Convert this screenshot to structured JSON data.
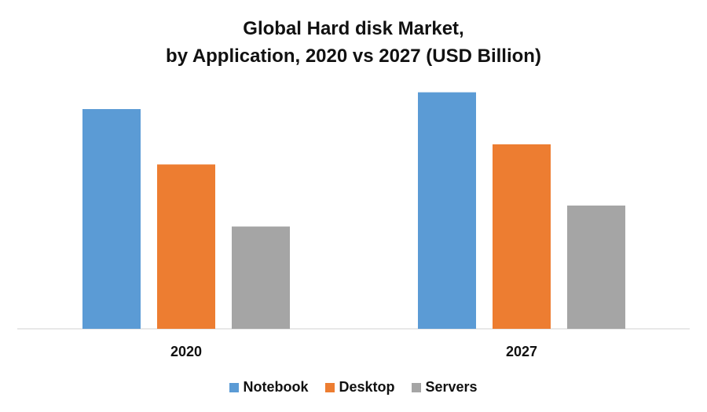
{
  "chart_data": {
    "type": "bar",
    "title_line1": "Global Hard disk Market,",
    "title_line2": "by Application, 2020 vs 2027 (USD Billion)",
    "categories": [
      "2020",
      "2027"
    ],
    "series": [
      {
        "name": "Notebook",
        "color": "#5b9bd5",
        "values": [
          26.2,
          28.2
        ]
      },
      {
        "name": "Desktop",
        "color": "#ed7d31",
        "values": [
          19.6,
          22.0
        ]
      },
      {
        "name": "Servers",
        "color": "#a5a5a5",
        "values": [
          12.2,
          14.7
        ]
      }
    ],
    "ylim": [
      0,
      32
    ],
    "xlabel": "",
    "ylabel": "",
    "grid": false,
    "legend_position": "bottom"
  }
}
